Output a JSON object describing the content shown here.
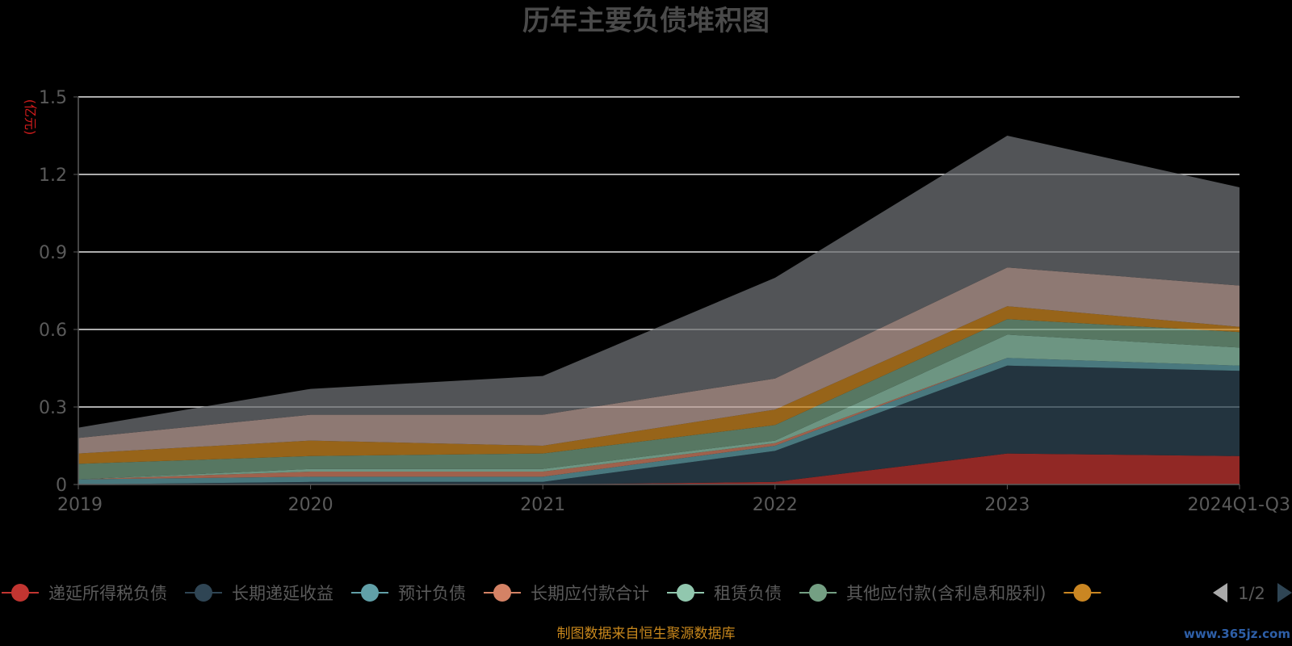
{
  "chart_data": {
    "type": "area",
    "stacked": true,
    "title": "历年主要负债堆积图",
    "unit_label": "(亿元)",
    "categories": [
      "2019",
      "2020",
      "2021",
      "2022",
      "2023",
      "2024Q1-Q3"
    ],
    "ylim": [
      0,
      1.5
    ],
    "yticks": [
      "0",
      "0.3",
      "0.6",
      "0.9",
      "1.2",
      "1.5"
    ],
    "grid": true,
    "legend_position": "bottom",
    "legend_page": "1/2",
    "series": [
      {
        "name": "递延所得税负债",
        "color": "#c23531",
        "values": [
          0.0,
          0.0,
          0.0,
          0.01,
          0.12,
          0.11
        ]
      },
      {
        "name": "长期递延收益",
        "color": "#2f4554",
        "values": [
          0.0,
          0.01,
          0.01,
          0.12,
          0.34,
          0.33
        ]
      },
      {
        "name": "预计负债",
        "color": "#61a0a8",
        "values": [
          0.02,
          0.02,
          0.02,
          0.02,
          0.03,
          0.02
        ]
      },
      {
        "name": "长期应付款合计",
        "color": "#d48265",
        "values": [
          0.0,
          0.02,
          0.02,
          0.01,
          0.0,
          0.0
        ]
      },
      {
        "name": "租赁负债",
        "color": "#91c7ae",
        "values": [
          0.0,
          0.01,
          0.01,
          0.01,
          0.09,
          0.07
        ]
      },
      {
        "name": "其他应付款(含利息和股利)",
        "color": "#749f83",
        "values": [
          0.06,
          0.05,
          0.06,
          0.06,
          0.06,
          0.06
        ]
      },
      {
        "name": "",
        "color": "#ca8622",
        "values": [
          0.04,
          0.06,
          0.03,
          0.06,
          0.05,
          0.02
        ]
      },
      {
        "name": "",
        "color": "#bda29a",
        "values": [
          0.06,
          0.1,
          0.12,
          0.12,
          0.15,
          0.16
        ]
      },
      {
        "name": "",
        "color": "#6e7074",
        "values": [
          0.04,
          0.1,
          0.15,
          0.39,
          0.51,
          0.38
        ]
      }
    ]
  },
  "footer": {
    "source": "制图数据来自恒生聚源数据库",
    "watermark": "www.365jz.com"
  }
}
